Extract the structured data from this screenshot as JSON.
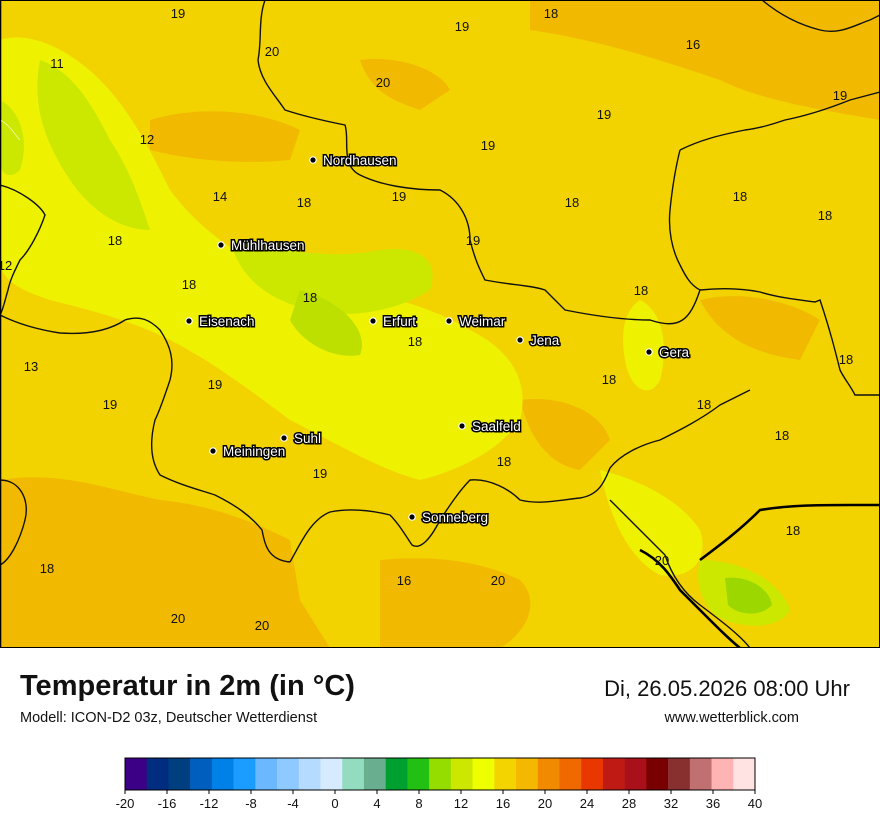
{
  "title": "Temperatur in 2m (in °C)",
  "model": "Modell: ICON-D2 03z, Deutscher Wetterdienst",
  "datetime": "Di, 26.05.2026 08:00 Uhr",
  "website": "www.wetterblick.com",
  "cities": [
    {
      "name": "Nordhausen"
    },
    {
      "name": "Mühlhausen"
    },
    {
      "name": "Eisenach"
    },
    {
      "name": "Erfurt"
    },
    {
      "name": "Weimar"
    },
    {
      "name": "Jena"
    },
    {
      "name": "Gera"
    },
    {
      "name": "Saalfeld"
    },
    {
      "name": "Suhl"
    },
    {
      "name": "Meiningen"
    },
    {
      "name": "Sonneberg"
    }
  ],
  "values": [
    "19",
    "18",
    "19",
    "16",
    "11",
    "20",
    "20",
    "19",
    "19",
    "12",
    "19",
    "14",
    "18",
    "19",
    "18",
    "18",
    "18",
    "18",
    "19",
    "12",
    "18",
    "18",
    "18",
    "13",
    "18",
    "18",
    "18",
    "19",
    "19",
    "18",
    "18",
    "18",
    "19",
    "18",
    "18",
    "20",
    "16",
    "20",
    "18",
    "20",
    "20"
  ],
  "legend": {
    "ticks": [
      "-20",
      "-16",
      "-12",
      "-8",
      "-4",
      "0",
      "4",
      "8",
      "12",
      "16",
      "20",
      "24",
      "28",
      "32",
      "36",
      "40"
    ],
    "colors": [
      "#3b0085",
      "#002d80",
      "#003f7f",
      "#005fbe",
      "#0081e8",
      "#1b9dff",
      "#6cb8ff",
      "#8ec9ff",
      "#b5dcff",
      "#d6ebff",
      "#93dcbf",
      "#68ae8f",
      "#00a030",
      "#22c012",
      "#95dc00",
      "#cce800",
      "#eeff00",
      "#f4d400",
      "#f5b800",
      "#f28a00",
      "#f06800",
      "#e83800",
      "#bf1a14",
      "#a9101a",
      "#780000",
      "#883030",
      "#c07070",
      "#ffb4b4",
      "#ffe2e2"
    ]
  }
}
